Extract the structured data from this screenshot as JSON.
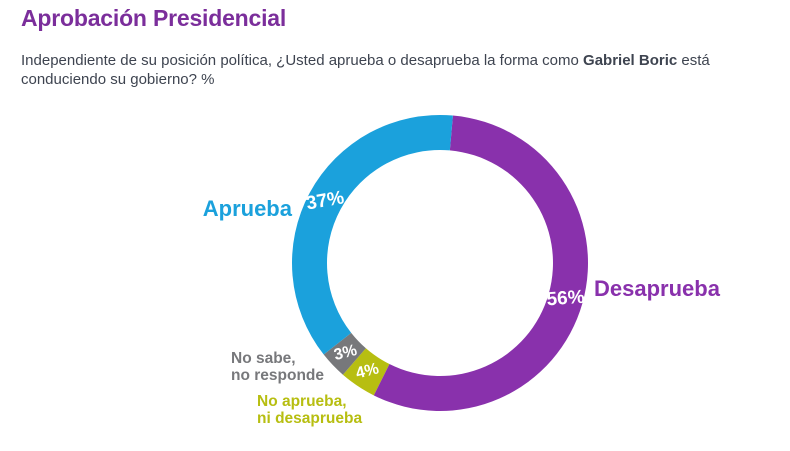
{
  "header": {
    "title": "Aprobación Presidencial",
    "subtitle_prefix": "Independiente de su posición política, ¿Usted aprueba o desaprueba la forma como ",
    "subtitle_bold": "Gabriel Boric",
    "subtitle_suffix": " está",
    "subtitle_line2": "conduciendo su gobierno? %"
  },
  "chart_data": {
    "type": "pie",
    "variant": "donut",
    "title": "Aprobación Presidencial",
    "unit": "%",
    "start_angle_deg": 5,
    "direction": "clockwise",
    "segments": [
      {
        "id": "desaprueba",
        "label": "Desaprueba",
        "value": 56,
        "pct_label": "56%",
        "color": "#8931AC",
        "label_rotation": -4
      },
      {
        "id": "no-aprueba-ni-desaprueba",
        "label": "No aprueba,\nni desaprueba",
        "value": 4,
        "pct_label": "4%",
        "color": "#B7BE11",
        "label_rotation": -14
      },
      {
        "id": "no-sabe-no-responde",
        "label": "No sabe,\nno responde",
        "value": 3,
        "pct_label": "3%",
        "color": "#77787B",
        "label_rotation": -14
      },
      {
        "id": "aprueba",
        "label": "Aprueba",
        "value": 37,
        "pct_label": "37%",
        "color": "#1BA1DC",
        "label_rotation": -10
      }
    ]
  },
  "colors": {
    "title": "#7B2E9B",
    "subtitle": "#3E4450",
    "background": "#ffffff",
    "percent_text": "#ffffff"
  }
}
